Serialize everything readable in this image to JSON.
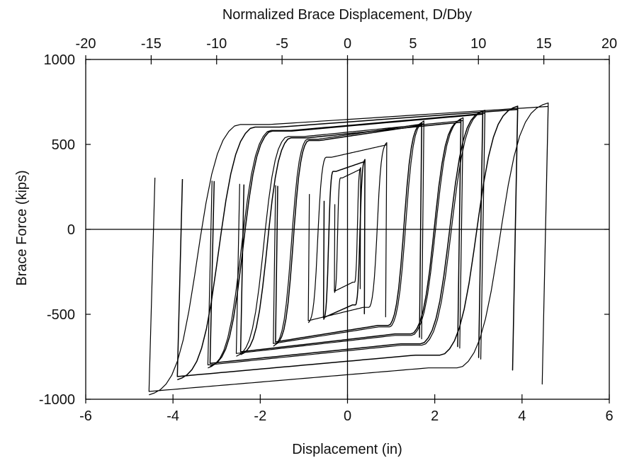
{
  "chart_data": {
    "type": "line",
    "title": "",
    "xlabel": "Displacement (in)",
    "ylabel": "Brace Force (kips)",
    "x2label": "Normalized Brace Displacement, D/Dby",
    "xlim": [
      -6,
      6
    ],
    "ylim": [
      -1000,
      1000
    ],
    "x2lim": [
      -20,
      20
    ],
    "xticks": [
      -6,
      -4,
      -2,
      0,
      2,
      4,
      6
    ],
    "yticks": [
      -1000,
      -500,
      0,
      500,
      1000
    ],
    "x2ticks": [
      -20,
      -15,
      -10,
      -5,
      0,
      5,
      10,
      15,
      20
    ],
    "xtick_labels": [
      "-6",
      "-4",
      "-2",
      "0",
      "2",
      "4",
      "6"
    ],
    "ytick_labels": [
      "-1000",
      "-500",
      "0",
      "500",
      "1000"
    ],
    "x2tick_labels": [
      "-20",
      "-15",
      "-10",
      "-5",
      "0",
      "5",
      "10",
      "15",
      "20"
    ],
    "grid": false,
    "zero_lines": true,
    "line_color": "#000000",
    "series": [
      {
        "cycle_amplitudes": [
          [
            -0.3,
            0.3,
            -380,
            370
          ],
          [
            -0.55,
            0.4,
            -540,
            420
          ],
          [
            -0.9,
            0.9,
            -560,
            520
          ],
          [
            -1.65,
            1.7,
            -690,
            640
          ],
          [
            -1.7,
            1.75,
            -700,
            650
          ],
          [
            -2.45,
            2.6,
            -750,
            660
          ],
          [
            -2.55,
            2.65,
            -760,
            670
          ],
          [
            -3.15,
            3.1,
            -820,
            710
          ],
          [
            -3.2,
            3.15,
            -830,
            715
          ],
          [
            -3.9,
            3.9,
            -900,
            740
          ],
          [
            -4.55,
            4.6,
            -990,
            760
          ]
        ]
      }
    ]
  }
}
